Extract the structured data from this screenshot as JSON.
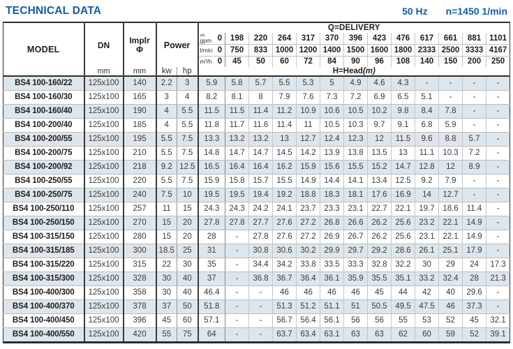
{
  "colors": {
    "accent_blue": "#155da4",
    "row_shade": "#dde6ec"
  },
  "header": {
    "title": "TECHNICAL DATA",
    "frequency": "50 Hz",
    "speed": "n=1450 1/min"
  },
  "table": {
    "headers": {
      "model": "MODEL",
      "dn": "DN",
      "implr_line1": "Implr",
      "implr_line2": "Φ",
      "power": "Power",
      "kw": "kw",
      "hp": "hp",
      "mm": "mm",
      "delivery": "Q=DELIVERY",
      "head": "H=Head",
      "head_unit": "(m)"
    },
    "units": {
      "gpm_top": "us",
      "gpm": "gpm",
      "lmin": "l/min",
      "m3h": "m³/h"
    },
    "delivery": {
      "gpm": [
        "0",
        "198",
        "220",
        "264",
        "317",
        "370",
        "396",
        "423",
        "476",
        "617",
        "661",
        "881",
        "1101"
      ],
      "lmin": [
        "0",
        "750",
        "833",
        "1000",
        "1200",
        "1400",
        "1500",
        "1600",
        "1800",
        "2333",
        "2500",
        "3333",
        "4167"
      ],
      "m3h": [
        "0",
        "45",
        "50",
        "60",
        "72",
        "84",
        "90",
        "96",
        "108",
        "140",
        "150",
        "200",
        "250"
      ]
    },
    "rows": [
      {
        "model": "BS4 100-160/22",
        "dn": "125x100",
        "implr": "140",
        "kw": "2.2",
        "hp": "3",
        "head": [
          "5.9",
          "5.8",
          "5.7",
          "5.5",
          "5.3",
          "5",
          "4.9",
          "4.6",
          "4.3",
          "-",
          "-",
          "-",
          "-"
        ]
      },
      {
        "model": "BS4 100-160/30",
        "dn": "125x100",
        "implr": "165",
        "kw": "3",
        "hp": "4",
        "head": [
          "8.2",
          "8.1",
          "8",
          "7.9",
          "7.6",
          "7.3",
          "7.2",
          "6.9",
          "6.5",
          "5.1",
          "-",
          "-",
          "-"
        ]
      },
      {
        "model": "BS4 100-160/40",
        "dn": "125x100",
        "implr": "190",
        "kw": "4",
        "hp": "5.5",
        "head": [
          "11.5",
          "11.5",
          "11.4",
          "11.2",
          "10.9",
          "10.6",
          "10.5",
          "10.2",
          "9.8",
          "8.4",
          "7.8",
          "-",
          "-"
        ]
      },
      {
        "model": "BS4 100-200/40",
        "dn": "125x100",
        "implr": "185",
        "kw": "4",
        "hp": "5.5",
        "head": [
          "11.8",
          "11.7",
          "11.6",
          "11.4",
          "11",
          "10.5",
          "10.3",
          "9.7",
          "9.1",
          "6.8",
          "5.9",
          "-",
          "-"
        ]
      },
      {
        "model": "BS4 100-200/55",
        "dn": "125x100",
        "implr": "195",
        "kw": "5.5",
        "hp": "7.5",
        "head": [
          "13.3",
          "13.2",
          "13.2",
          "13",
          "12.7",
          "12.4",
          "12.3",
          "12",
          "11.5",
          "9.6",
          "8.8",
          "5.7",
          "-"
        ]
      },
      {
        "model": "BS4 100-200/75",
        "dn": "125x100",
        "implr": "210",
        "kw": "5.5",
        "hp": "7.5",
        "head": [
          "14.8",
          "14.7",
          "14.7",
          "14.5",
          "14.2",
          "13.9",
          "13.8",
          "13.5",
          "13",
          "11.1",
          "10.3",
          "7.2",
          "-"
        ]
      },
      {
        "model": "BS4 100-200/92",
        "dn": "125x100",
        "implr": "218",
        "kw": "9.2",
        "hp": "12.5",
        "head": [
          "16.5",
          "16.4",
          "16.4",
          "16.2",
          "15.9",
          "15.6",
          "15.5",
          "15.2",
          "14.7",
          "12.8",
          "12",
          "8.9",
          "-"
        ]
      },
      {
        "model": "BS4 100-250/55",
        "dn": "125x100",
        "implr": "220",
        "kw": "5.5",
        "hp": "7.5",
        "head": [
          "15.9",
          "15.8",
          "15.7",
          "15.5",
          "14.9",
          "14.4",
          "14.1",
          "13.4",
          "12.5",
          "9.2",
          "7.9",
          "-",
          "-"
        ]
      },
      {
        "model": "BS4 100-250/75",
        "dn": "125x100",
        "implr": "240",
        "kw": "7.5",
        "hp": "10",
        "head": [
          "19.5",
          "19.5",
          "19.4",
          "19.2",
          "18.8",
          "18.3",
          "18.1",
          "17.6",
          "16.9",
          "14",
          "12.7",
          "-",
          "-"
        ]
      },
      {
        "model": "BS4 100-250/110",
        "dn": "125x100",
        "implr": "257",
        "kw": "11",
        "hp": "15",
        "head": [
          "24.3",
          "24.3",
          "24.2",
          "24.1",
          "23.7",
          "23.3",
          "23.1",
          "22.7",
          "22.1",
          "19.7",
          "18.6",
          "11.4",
          "-"
        ]
      },
      {
        "model": "BS4 100-250/150",
        "dn": "125x100",
        "implr": "270",
        "kw": "15",
        "hp": "20",
        "head": [
          "27.8",
          "27.8",
          "27.7",
          "27.6",
          "27.2",
          "26.8",
          "26.6",
          "26.2",
          "25.6",
          "23.2",
          "22.1",
          "14.9",
          "-"
        ]
      },
      {
        "model": "BS4 100-315/150",
        "dn": "125x100",
        "implr": "280",
        "kw": "15",
        "hp": "20",
        "head": [
          "28",
          "-",
          "27.8",
          "27.6",
          "27.2",
          "26.9",
          "26.7",
          "26.2",
          "25.6",
          "23.1",
          "22.1",
          "14.9",
          "-"
        ]
      },
      {
        "model": "BS4 100-315/185",
        "dn": "125x100",
        "implr": "300",
        "kw": "18.5",
        "hp": "25",
        "head": [
          "31",
          "-",
          "30.8",
          "30.6",
          "30.2",
          "29.9",
          "29.7",
          "29.2",
          "28.6",
          "26.1",
          "25.1",
          "17.9",
          "-"
        ]
      },
      {
        "model": "BS4 100-315/220",
        "dn": "125x100",
        "implr": "315",
        "kw": "22",
        "hp": "30",
        "head": [
          "35",
          "-",
          "34.4",
          "34.2",
          "33.8",
          "33.5",
          "33.3",
          "32.8",
          "32.2",
          "30",
          "29",
          "24",
          "17.3"
        ]
      },
      {
        "model": "BS4 100-315/300",
        "dn": "125x100",
        "implr": "328",
        "kw": "30",
        "hp": "40",
        "head": [
          "37",
          "-",
          "36.8",
          "36.7",
          "36.4",
          "36.1",
          "35.9",
          "35.5",
          "35.1",
          "33.2",
          "32.4",
          "28",
          "21.3"
        ]
      },
      {
        "model": "BS4 100-400/300",
        "dn": "125x100",
        "implr": "358",
        "kw": "30",
        "hp": "40",
        "head": [
          "46.4",
          "-",
          "-",
          "46",
          "46",
          "46",
          "46",
          "45",
          "44",
          "42",
          "40",
          "29.6",
          "-"
        ]
      },
      {
        "model": "BS4 100-400/370",
        "dn": "125x100",
        "implr": "378",
        "kw": "37",
        "hp": "50",
        "head": [
          "51.8",
          "-",
          "-",
          "51.3",
          "51.2",
          "51.1",
          "51",
          "50.5",
          "49.5",
          "47.5",
          "46",
          "37.3",
          "-"
        ]
      },
      {
        "model": "BS4 100-400/450",
        "dn": "125x100",
        "implr": "396",
        "kw": "45",
        "hp": "60",
        "head": [
          "57.1",
          "-",
          "-",
          "56.7",
          "56.4",
          "56.1",
          "56",
          "56",
          "55",
          "53",
          "52",
          "45",
          "32.1"
        ]
      },
      {
        "model": "BS4 100-400/550",
        "dn": "125x100",
        "implr": "420",
        "kw": "55",
        "hp": "75",
        "head": [
          "64",
          "-",
          "-",
          "63.7",
          "63.4",
          "63.1",
          "63",
          "63",
          "62",
          "60",
          "59",
          "52",
          "39.1"
        ]
      }
    ]
  }
}
